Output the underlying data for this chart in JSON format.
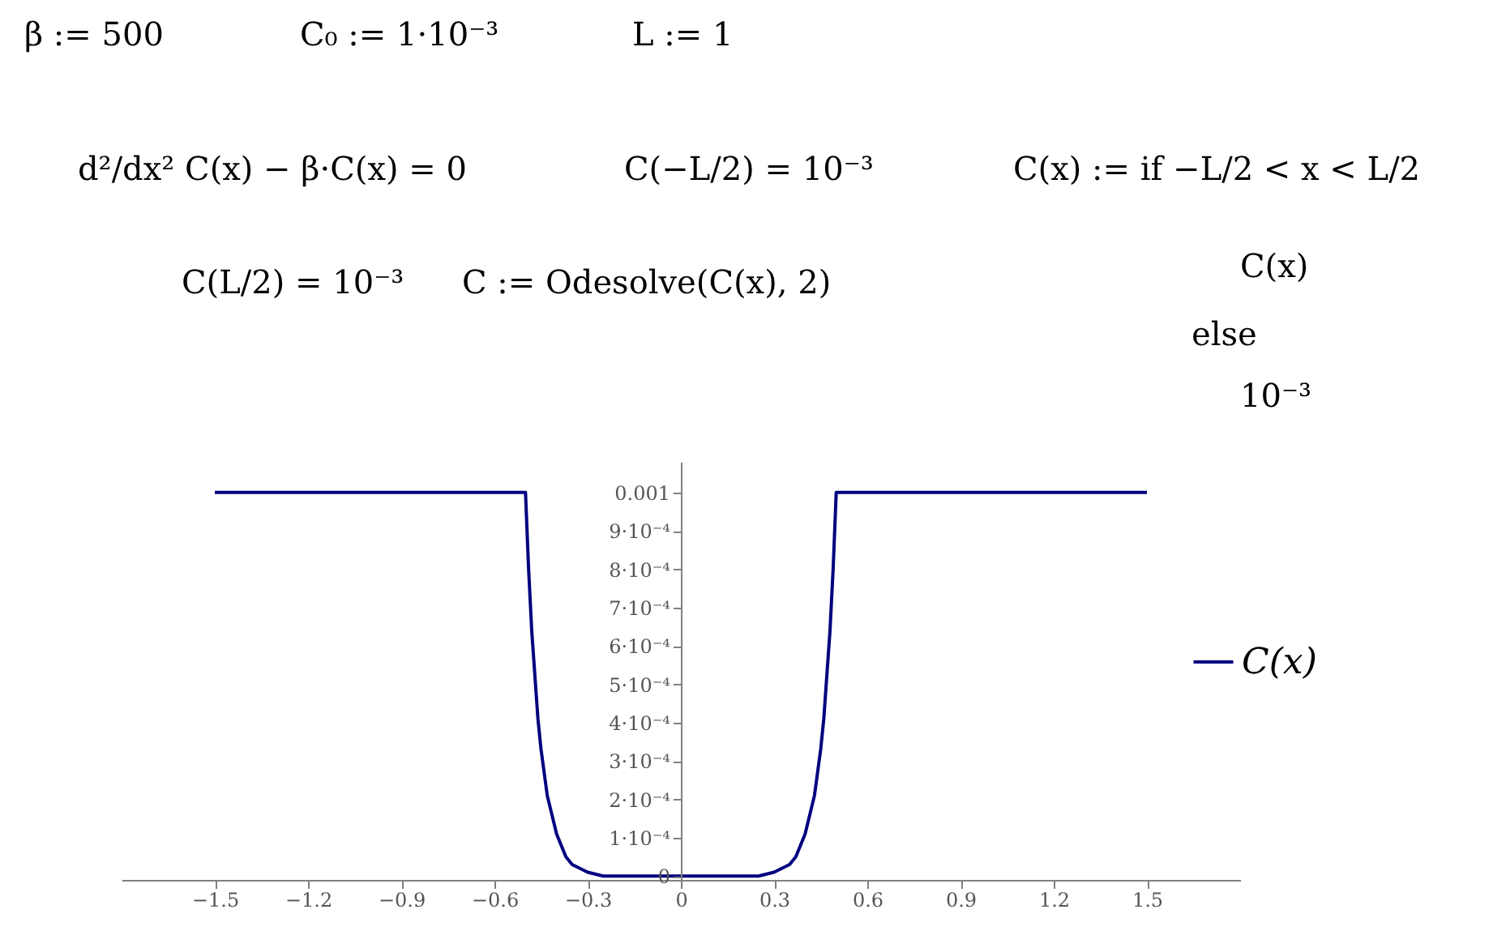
{
  "chart_data": {
    "type": "line",
    "annotations": [
      "β := 500",
      "C₀ := 1·10⁻³",
      "L := 1",
      "d²/dx² C(x) − β·C(x) = 0",
      "C(−L/2) = 10⁻³",
      "C(L/2) = 10⁻³",
      "C := Odesolve(C(x), 2)",
      "C(x) := if −L/2 < x < L/2",
      "C(x)",
      "else",
      "10⁻³"
    ],
    "x": [
      -1.5,
      -0.5,
      -0.49,
      -0.48,
      -0.46,
      -0.45,
      -0.43,
      -0.4,
      -0.37,
      -0.35,
      -0.3,
      -0.25,
      0,
      0.25,
      0.3,
      0.35,
      0.37,
      0.4,
      0.43,
      0.45,
      0.46,
      0.48,
      0.49,
      0.5,
      1.5
    ],
    "series": [
      {
        "name": "C(x)",
        "color": "#000080",
        "values": [
          0.001,
          0.001,
          0.0008,
          0.00064,
          0.00041,
          0.00033,
          0.00021,
          0.00011,
          5e-05,
          3e-05,
          1e-05,
          0,
          0,
          0,
          1e-05,
          3e-05,
          5e-05,
          0.00011,
          0.00021,
          0.00033,
          0.00041,
          0.00064,
          0.0008,
          0.001,
          0.001
        ]
      }
    ],
    "xlim": [
      -1.8,
      1.8
    ],
    "xticks": [
      {
        "value": -1.5,
        "label": "−1.5"
      },
      {
        "value": -1.2,
        "label": "−1.2"
      },
      {
        "value": -0.9,
        "label": "−0.9"
      },
      {
        "value": -0.6,
        "label": "−0.6"
      },
      {
        "value": -0.3,
        "label": "−0.3"
      },
      0,
      0.3,
      0.6,
      0.9,
      1.2,
      1.5
    ],
    "ylim": [
      -1e-05,
      0.00108
    ],
    "yticks": [
      0,
      {
        "value": 0.0001,
        "label": "1·10⁻⁴"
      },
      {
        "value": 0.0002,
        "label": "2·10⁻⁴"
      },
      {
        "value": 0.0003,
        "label": "3·10⁻⁴"
      },
      {
        "value": 0.0004,
        "label": "4·10⁻⁴"
      },
      {
        "value": 0.0005,
        "label": "5·10⁻⁴"
      },
      {
        "value": 0.0006,
        "label": "6·10⁻⁴"
      },
      {
        "value": 0.0007,
        "label": "7·10⁻⁴"
      },
      {
        "value": 0.0008,
        "label": "8·10⁻⁴"
      },
      {
        "value": 0.0009,
        "label": "9·10⁻⁴"
      },
      0.001
    ],
    "grid": false,
    "legend": "right",
    "line_style": "solid",
    "marker": "none"
  }
}
